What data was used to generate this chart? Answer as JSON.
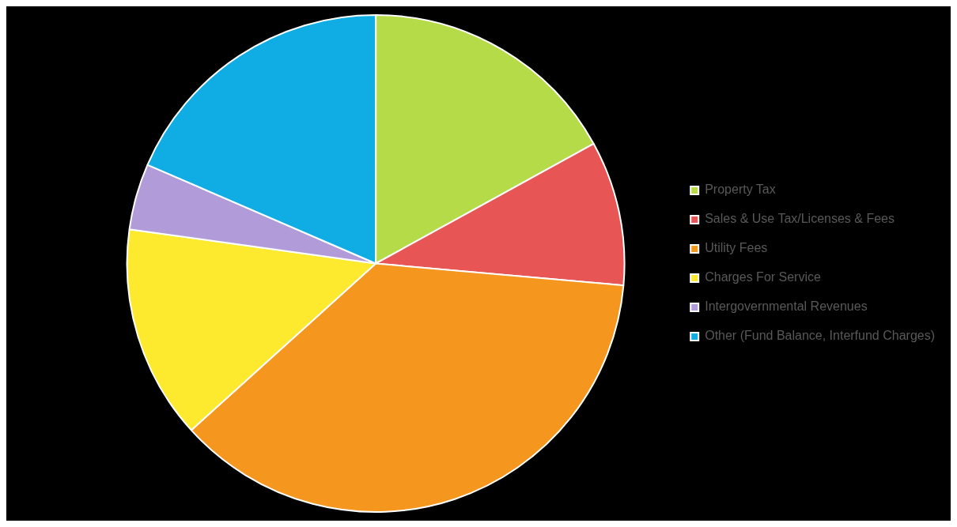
{
  "chart_data": {
    "type": "pie",
    "categories": [
      "Property Tax",
      "Sales & Use Tax/Licenses & Fees",
      "Utility Fees",
      "Charges For Service",
      "Intergovernmental Revenues",
      "Other (Fund Balance, Interfund Charges)"
    ],
    "values": [
      17.0,
      9.4,
      36.9,
      13.9,
      4.3,
      18.5
    ],
    "colors": [
      "#b5dc48",
      "#e85555",
      "#f5961e",
      "#fde92e",
      "#b19cd9",
      "#10ade5"
    ],
    "legend": "right"
  }
}
